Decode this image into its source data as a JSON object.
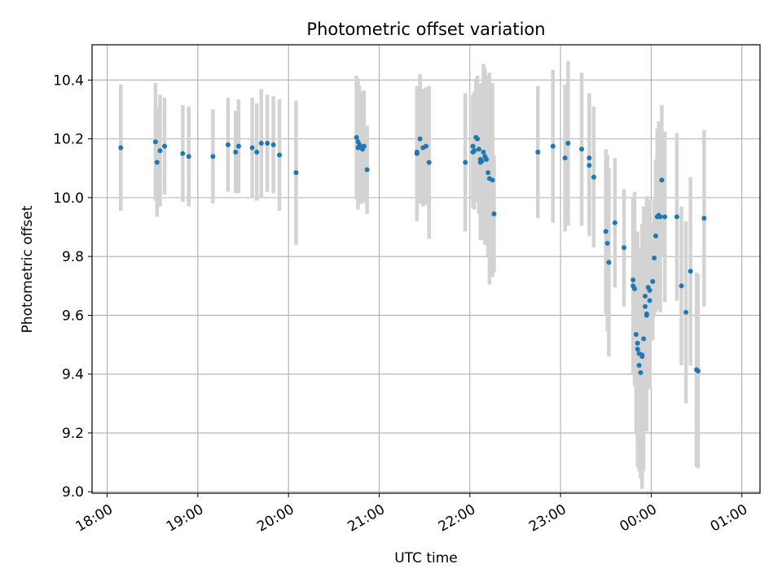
{
  "chart_data": {
    "type": "scatter",
    "title": "Photometric offset variation",
    "xlabel": "UTC time",
    "ylabel": "Photometric offset",
    "grid": true,
    "xlim": [
      "17:50",
      "01:12"
    ],
    "ylim": [
      8.995,
      10.52
    ],
    "x_ticks": [
      "18:00",
      "19:00",
      "20:00",
      "21:00",
      "22:00",
      "23:00",
      "00:00",
      "01:00"
    ],
    "y_ticks": [
      9.0,
      9.2,
      9.4,
      9.6,
      9.8,
      10.0,
      10.2,
      10.4
    ],
    "x_tick_label_rotation_deg": 30,
    "colors": {
      "points": "#1f77b4",
      "errorbars": "#d3d3d3",
      "grid": "#b0b0b0",
      "axes": "#000000"
    },
    "series": [
      {
        "x": [
          "18:09",
          "18:32",
          "18:33",
          "18:35",
          "18:38",
          "18:50",
          "18:54",
          "19:10",
          "19:20",
          "19:25",
          "19:27",
          "19:36",
          "19:39",
          "19:42",
          "19:46",
          "19:50",
          "19:54",
          "20:05",
          "20:45",
          "20:46",
          "20:46",
          "20:47",
          "20:48",
          "20:49",
          "20:50",
          "20:52",
          "21:25",
          "21:25",
          "21:27",
          "21:29",
          "21:31",
          "21:33",
          "21:57",
          "22:02",
          "22:02",
          "22:03",
          "22:04",
          "22:05",
          "22:06",
          "22:07",
          "22:07",
          "22:08",
          "22:09",
          "22:10",
          "22:11",
          "22:12",
          "22:13",
          "22:15",
          "22:16",
          "22:45",
          "22:55",
          "23:03",
          "23:05",
          "23:14",
          "23:19",
          "23:19",
          "23:22",
          "23:30",
          "23:31",
          "23:32",
          "23:36",
          "23:42",
          "23:48",
          "23:48",
          "23:49",
          "23:50",
          "23:51",
          "23:51",
          "23:52",
          "23:52",
          "23:53",
          "23:54",
          "23:54",
          "23:55",
          "23:56",
          "23:56",
          "23:57",
          "23:57",
          "23:58",
          "23:59",
          "23:59",
          "00:01",
          "00:02",
          "00:03",
          "00:04",
          "00:05",
          "00:06",
          "00:07",
          "00:09",
          "00:17",
          "00:20",
          "00:23",
          "00:26",
          "00:30",
          "00:31",
          "00:35"
        ],
        "y": [
          10.17,
          10.19,
          10.12,
          10.16,
          10.175,
          10.15,
          10.14,
          10.14,
          10.18,
          10.155,
          10.175,
          10.17,
          10.155,
          10.185,
          10.185,
          10.18,
          10.145,
          10.085,
          10.205,
          10.19,
          10.17,
          10.18,
          10.17,
          10.165,
          10.175,
          10.095,
          10.155,
          10.15,
          10.2,
          10.17,
          10.175,
          10.12,
          10.12,
          10.175,
          10.155,
          10.16,
          10.205,
          10.2,
          10.165,
          10.13,
          10.12,
          10.125,
          10.155,
          10.14,
          10.13,
          10.085,
          10.065,
          10.06,
          9.945,
          10.155,
          10.175,
          10.135,
          10.185,
          10.165,
          10.135,
          10.11,
          10.07,
          9.885,
          9.845,
          9.78,
          9.915,
          9.83,
          9.72,
          9.7,
          9.69,
          9.535,
          9.505,
          9.485,
          9.47,
          9.43,
          9.405,
          9.465,
          9.46,
          9.52,
          9.665,
          9.63,
          9.6,
          9.605,
          9.695,
          9.65,
          9.685,
          9.715,
          9.795,
          9.87,
          9.935,
          9.94,
          9.935,
          10.06,
          9.935,
          9.935,
          9.7,
          9.61,
          9.75,
          9.415,
          9.41,
          9.93
        ],
        "err": [
          0.215,
          0.2,
          0.185,
          0.19,
          0.165,
          0.165,
          0.17,
          0.16,
          0.16,
          0.14,
          0.16,
          0.17,
          0.165,
          0.185,
          0.165,
          0.165,
          0.19,
          0.245,
          0.21,
          0.215,
          0.21,
          0.2,
          0.19,
          0.185,
          0.19,
          0.15,
          0.215,
          0.23,
          0.22,
          0.2,
          0.2,
          0.26,
          0.235,
          0.175,
          0.19,
          0.2,
          0.2,
          0.215,
          0.22,
          0.25,
          0.265,
          0.265,
          0.3,
          0.3,
          0.285,
          0.285,
          0.36,
          0.33,
          0.2,
          0.225,
          0.26,
          0.25,
          0.28,
          0.26,
          0.22,
          0.24,
          0.24,
          0.28,
          0.3,
          0.32,
          0.22,
          0.2,
          0.26,
          0.3,
          0.33,
          0.34,
          0.35,
          0.4,
          0.36,
          0.36,
          0.36,
          0.4,
          0.45,
          0.45,
          0.26,
          0.3,
          0.38,
          0.4,
          0.3,
          0.3,
          0.3,
          0.2,
          0.2,
          0.26,
          0.3,
          0.32,
          0.325,
          0.255,
          0.29,
          0.285,
          0.27,
          0.31,
          0.32,
          0.33,
          0.33,
          0.3
        ]
      }
    ]
  }
}
